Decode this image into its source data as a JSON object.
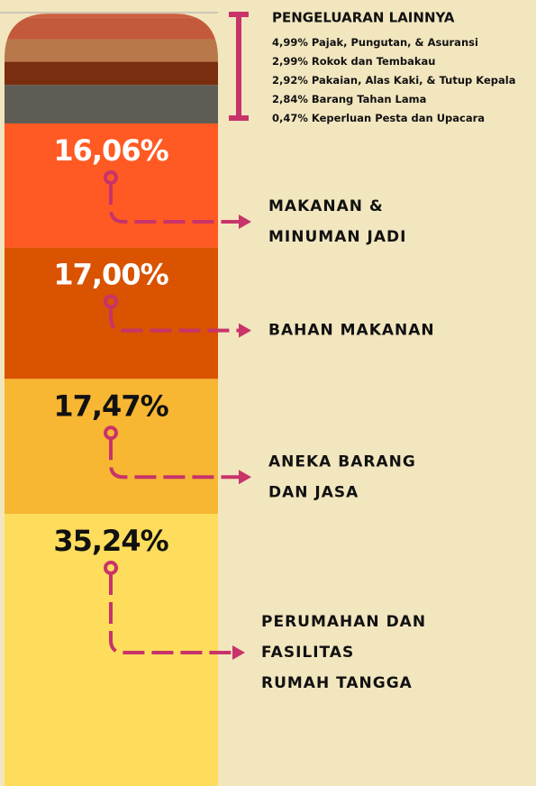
{
  "chart_data": {
    "type": "stacked_column",
    "ylim": [
      0,
      100
    ],
    "other_title": "PENGELUARAN LAINNYA",
    "segments": [
      {
        "value": 35.24,
        "value_label": "35,24%",
        "color": "#fedd5c",
        "label_color": "#111111",
        "label_lines": [
          "PERUMAHAN DAN",
          "FASILITAS",
          "RUMAH TANGGA"
        ]
      },
      {
        "value": 17.47,
        "value_label": "17,47%",
        "color": "#f7b733",
        "label_color": "#111111",
        "label_lines": [
          "ANEKA BARANG",
          "DAN JASA"
        ]
      },
      {
        "value": 17.0,
        "value_label": "17,00%",
        "color": "#d95300",
        "label_color": "#ffffff",
        "label_lines": [
          "BAHAN MAKANAN"
        ]
      },
      {
        "value": 16.06,
        "value_label": "16,06%",
        "color": "#ff5a23",
        "label_color": "#ffffff",
        "label_lines": [
          "MAKANAN &",
          "MINUMAN JADI"
        ]
      },
      {
        "value": 4.99,
        "value_label": "4,99%",
        "name": "Pajak, Pungutan, & Asuransi",
        "color": "#5e5c55"
      },
      {
        "value": 2.99,
        "value_label": "2,99%",
        "name": "Rokok dan Tembakau",
        "color": "#7a2e10"
      },
      {
        "value": 2.92,
        "value_label": "2,92%",
        "name": "Pakaian, Alas Kaki, & Tutup Kepala",
        "color": "#b9784a"
      },
      {
        "value": 2.84,
        "value_label": "2,84%",
        "name": "Barang Tahan Lama",
        "color": "#c45a3c"
      },
      {
        "value": 0.47,
        "value_label": "0,47%",
        "name": "Keperluan Pesta dan Upacara",
        "color": "#cc6040"
      }
    ]
  }
}
